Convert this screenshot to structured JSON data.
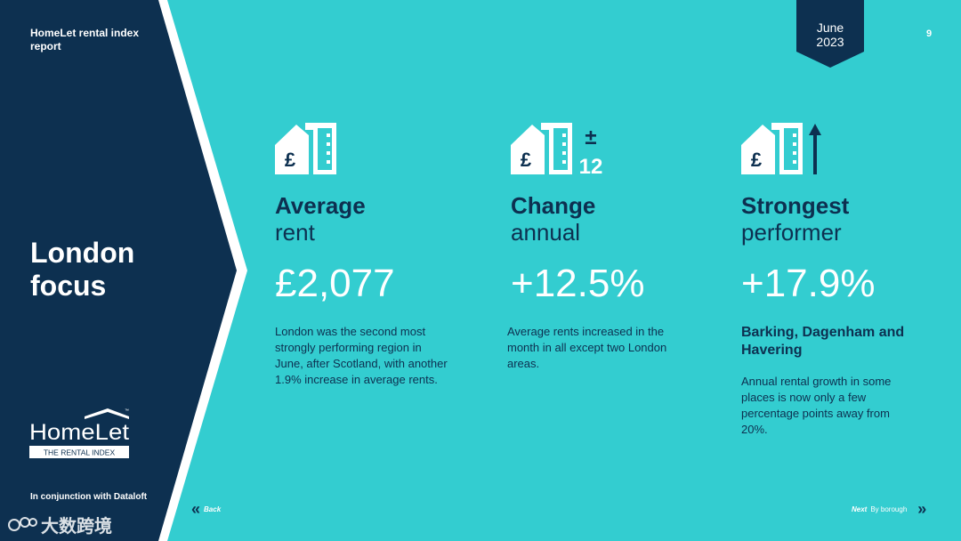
{
  "report": {
    "title": "HomeLet rental index report",
    "section_title": "London focus",
    "conjunction": "In conjunction with Dataloft",
    "date": {
      "month": "June",
      "year": "2023"
    },
    "page_number": "9"
  },
  "logo": {
    "brand": "HomeLet",
    "tagline": "THE RENTAL INDEX",
    "tm": "™"
  },
  "stats": [
    {
      "icon": "house-pound-icon",
      "title": "Average",
      "subtitle": "rent",
      "value": "£2,077",
      "description": "London was the second most strongly performing region in June, after Scotland, with another 1.9% increase in average rents."
    },
    {
      "icon": "house-pound-plus-minus-12-icon",
      "icon_text": {
        "sign": "±",
        "months": "12"
      },
      "title": "Change",
      "subtitle": "annual",
      "value": "+12.5%",
      "description": "Average rents increased in the month in all except two London areas."
    },
    {
      "icon": "house-pound-arrow-up-icon",
      "title": "Strongest",
      "subtitle": "performer",
      "value": "+17.9%",
      "highlight": "Barking, Dagenham and Havering",
      "description": "Annual rental growth in some places is now only a few percentage points away from 20%."
    }
  ],
  "nav": {
    "back_label": "Back",
    "next_label": "Next",
    "next_target": "By borough"
  },
  "watermark": {
    "text": "大数跨境"
  },
  "colors": {
    "background": "#33cdd0",
    "sidebar": "#0d3050",
    "text_dark": "#0d3050",
    "text_light": "#ffffff"
  }
}
